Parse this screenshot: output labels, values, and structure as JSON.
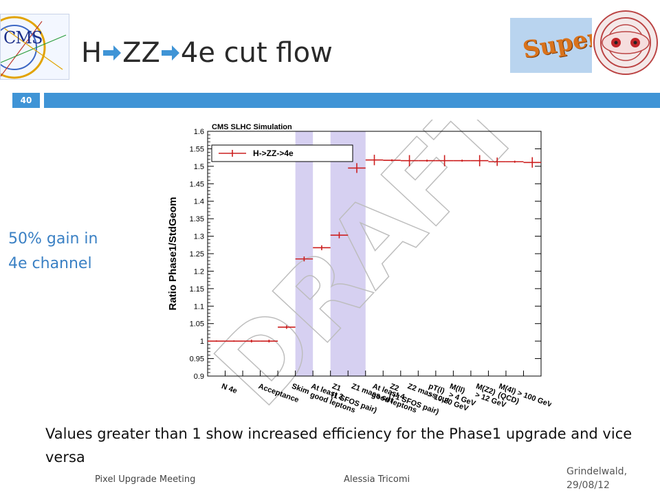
{
  "header": {
    "title_parts": [
      "H",
      "ZZ",
      "4e cut flow"
    ],
    "title_arrow": "arrow-right-icon",
    "slide_number": "40",
    "logo_left": {
      "name": "cms-logo",
      "text": "CMS"
    },
    "logo_super": {
      "name": "super-lhc-logo",
      "text": "Super"
    },
    "logo_right": {
      "name": "lhc-magnet-logo"
    },
    "bar_color": "#3f94d6"
  },
  "side_note": {
    "line1": "50% gain in",
    "line2": "4e channel",
    "color": "#3a80c4"
  },
  "bottom_text": "Values greater than 1 show increased efficiency for the Phase1 upgrade and vice versa",
  "footer": {
    "left": "Pixel Upgrade Meeting",
    "center": "Alessia Tricomi",
    "date_line1": "Grindelwald,",
    "date_line2": "29/08/12"
  },
  "chart_data": {
    "type": "scatter",
    "title": "CMS SLHC Simulation",
    "ylabel": "Ratio Phase1/StdGeom",
    "xlabel": "",
    "ylim": [
      0.9,
      1.6
    ],
    "yticks": [
      0.9,
      0.95,
      1,
      1.05,
      1.1,
      1.15,
      1.2,
      1.25,
      1.3,
      1.35,
      1.4,
      1.45,
      1.5,
      1.55,
      1.6
    ],
    "ytick_labels": [
      "0.9",
      "0.95",
      "1",
      "1.05",
      "1.1",
      "1.15",
      "1.2",
      "1.25",
      "1.3",
      "1.35",
      "1.4",
      "1.45",
      "1.5",
      "1.55",
      "1.6"
    ],
    "categories": [
      "N 4e",
      "Acceptance",
      "Skim",
      "At least 2 good leptons",
      "Z1 (1 SFOS pair)",
      "Z1 mass cut",
      "At least 4 good leptons",
      "Z2 (+1 SFOS pair)",
      "Z2 mass cut",
      "pT(l) > 10,20 GeV",
      "M(ll) > 4 GeV",
      "M(Z2) > 12 GeV",
      "M(4l) > 100 GeV (QCD)"
    ],
    "tick_labels": [
      [
        "N 4e"
      ],
      [
        "Acceptance"
      ],
      [
        "Skim"
      ],
      [
        "At least 2",
        "good leptons"
      ],
      [
        "Z1",
        "(1 SFOS pair)"
      ],
      [
        "Z1 mass cut"
      ],
      [
        "At least 4",
        "good leptons"
      ],
      [
        "Z2",
        "(+1 SFOS pair)"
      ],
      [
        "Z2 mass cut"
      ],
      [
        "pT(l)",
        "> 10,20 GeV"
      ],
      [
        "M(ll)",
        "> 4 GeV"
      ],
      [
        "M(Z2)",
        "> 12 GeV"
      ],
      [
        "M(4l) > 100 GeV",
        "(QCD)"
      ]
    ],
    "series": [
      {
        "name": "H->ZZ->4e",
        "color": "#cc1f1f",
        "points": [
          {
            "x": 0,
            "y": 1.0,
            "err": 0.002
          },
          {
            "x": 1,
            "y": 1.0,
            "err": 0.002
          },
          {
            "x": 2,
            "y": 1.0,
            "err": 0.004
          },
          {
            "x": 3,
            "y": 1.0,
            "err": 0.004
          },
          {
            "x": 4,
            "y": 1.04,
            "err": 0.005
          },
          {
            "x": 5,
            "y": 1.235,
            "err": 0.007
          },
          {
            "x": 6,
            "y": 1.267,
            "err": 0.007
          },
          {
            "x": 7,
            "y": 1.303,
            "err": 0.009
          },
          {
            "x": 8,
            "y": 1.495,
            "err": 0.014
          },
          {
            "x": 9,
            "y": 1.518,
            "err": 0.015
          },
          {
            "x": 10,
            "y": 1.517,
            "err": 0.003
          },
          {
            "x": 11,
            "y": 1.516,
            "err": 0.016
          },
          {
            "x": 12,
            "y": 1.516,
            "err": 0.003
          },
          {
            "x": 13,
            "y": 1.516,
            "err": 0.016
          },
          {
            "x": 14,
            "y": 1.516,
            "err": 0.003
          },
          {
            "x": 15,
            "y": 1.516,
            "err": 0.016
          },
          {
            "x": 16,
            "y": 1.513,
            "err": 0.012
          },
          {
            "x": 17,
            "y": 1.513,
            "err": 0.003
          },
          {
            "x": 18,
            "y": 1.511,
            "err": 0.015
          }
        ]
      }
    ],
    "highlight_bands": [
      {
        "from": 5,
        "to": 6
      },
      {
        "from": 7,
        "to": 9
      }
    ],
    "highlight_color": "#cfc8ee",
    "bin_count": 19,
    "legend_position": "top-left",
    "watermark": "DRAFT",
    "grid": false
  }
}
